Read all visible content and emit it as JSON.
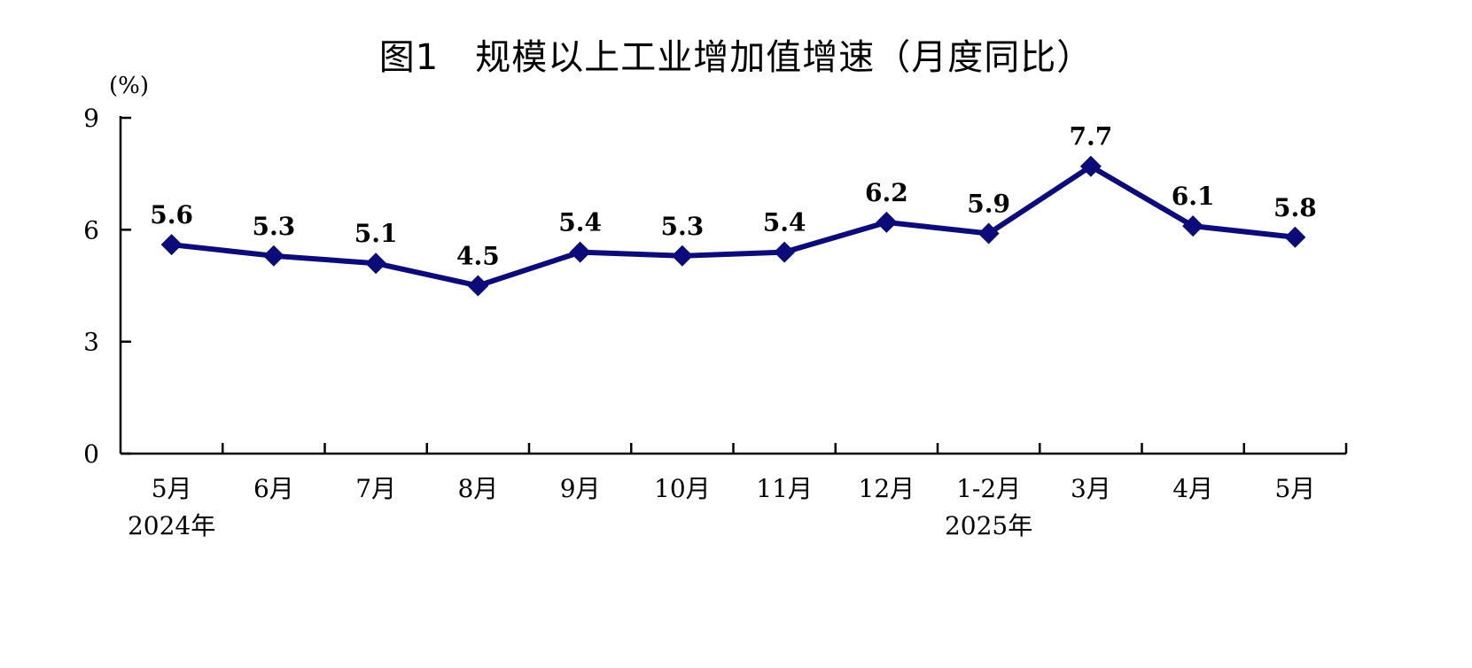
{
  "chart_data": {
    "type": "line",
    "title": "图1　规模以上工业增加值增速（月度同比）",
    "ylabel": "(%)",
    "xlabel": "",
    "categories": [
      "5月",
      "6月",
      "7月",
      "8月",
      "9月",
      "10月",
      "11月",
      "12月",
      "1-2月",
      "3月",
      "4月",
      "5月"
    ],
    "year_labels": [
      {
        "label": "2024年",
        "category_index": 0
      },
      {
        "label": "2025年",
        "category_index": 8
      }
    ],
    "series": [
      {
        "values": [
          5.6,
          5.3,
          5.1,
          4.5,
          5.4,
          5.3,
          5.4,
          6.2,
          5.9,
          7.7,
          6.1,
          5.8
        ]
      }
    ],
    "data_labels": [
      "5.6",
      "5.3",
      "5.1",
      "4.5",
      "5.4",
      "5.3",
      "5.4",
      "6.2",
      "5.9",
      "7.7",
      "6.1",
      "5.8"
    ],
    "ylim": [
      0,
      9
    ],
    "yticks": [
      0,
      3,
      6,
      9
    ],
    "grid": false,
    "legend": "none",
    "marker": "diamond",
    "line_color": "#0b0b7a"
  }
}
